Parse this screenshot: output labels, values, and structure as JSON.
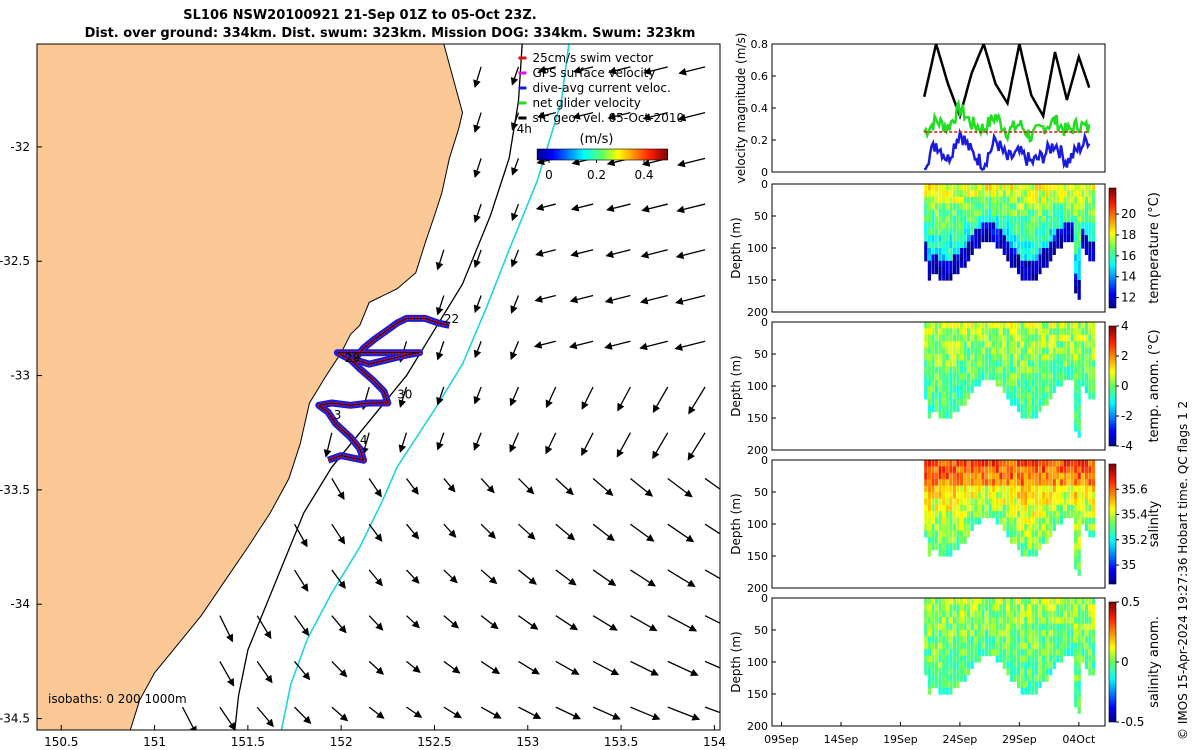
{
  "title_line1": "SL106 NSW20100921 21-Sep 01Z to 05-Oct 23Z.",
  "title_line2": "Dist. over ground: 334km. Dist. swum: 323km. Mission DOG: 334km. Swum: 323km",
  "credit": "© IMOS 15-Apr-2024 19:27:36 Hobart time. QC flags 1  2",
  "colors": {
    "land": "#fcc896",
    "track_red": "#e01010",
    "track_blue": "#1b1bdb",
    "isobath_cyan": "#22d3e0",
    "glider_green": "#22dd22"
  },
  "chart_data": [
    {
      "type": "map",
      "xlim": [
        150.37,
        154.03
      ],
      "ylim": [
        -34.55,
        -31.55
      ],
      "x_ticks": [
        "150.5",
        "151",
        "151.5",
        "152",
        "152.5",
        "153",
        "153.5",
        "154"
      ],
      "x_tick_values": [
        150.5,
        151,
        151.5,
        152,
        152.5,
        153,
        153.5,
        154
      ],
      "y_ticks": [
        "-32",
        "-32.5",
        "-33",
        "-33.5",
        "-34",
        "-34.5"
      ],
      "y_tick_values": [
        -32,
        -32.5,
        -33,
        -33.5,
        -34,
        -34.5
      ],
      "legend": {
        "position": "top-right",
        "entries": [
          {
            "label": "25cm/s swim vector",
            "color": "#e01010"
          },
          {
            "label": "GPS surface velocity",
            "color": "#e010e0"
          },
          {
            "label": "dive-avg current veloc.",
            "color": "#1b1bdb"
          },
          {
            "label": "net glider velocity",
            "color": "#22dd22"
          },
          {
            "label": "sfc geo. vel. 05-Oct-2010",
            "color": "#000000"
          }
        ]
      },
      "colorbar": {
        "unit": "(m/s)",
        "ticks": [
          "0",
          "0.2",
          "0.4"
        ],
        "tick_values": [
          0,
          0.2,
          0.4
        ],
        "range": [
          -0.05,
          0.5
        ]
      },
      "isobath_label": "isobaths: 0  200  1000m",
      "map_annotations": [
        {
          "text": "4h",
          "lon": 152.94,
          "lat": -31.94
        },
        {
          "text": "22",
          "lon": 152.55,
          "lat": -32.77
        },
        {
          "text": "29",
          "lon": 152.02,
          "lat": -32.94
        },
        {
          "text": "30",
          "lon": 152.3,
          "lat": -33.1
        },
        {
          "text": "3",
          "lon": 151.96,
          "lat": -33.19
        },
        {
          "text": "4",
          "lon": 152.1,
          "lat": -33.3
        }
      ],
      "coast": [
        [
          150.37,
          -31.55
        ],
        [
          152.55,
          -31.55
        ],
        [
          152.6,
          -31.7
        ],
        [
          152.65,
          -31.85
        ],
        [
          152.63,
          -31.92
        ],
        [
          152.58,
          -32.05
        ],
        [
          152.54,
          -32.2
        ],
        [
          152.5,
          -32.3
        ],
        [
          152.45,
          -32.42
        ],
        [
          152.4,
          -32.55
        ],
        [
          152.3,
          -32.62
        ],
        [
          152.15,
          -32.68
        ],
        [
          152.1,
          -32.78
        ],
        [
          152.05,
          -32.82
        ],
        [
          152.0,
          -32.9
        ],
        [
          151.92,
          -33.0
        ],
        [
          151.83,
          -33.12
        ],
        [
          151.78,
          -33.3
        ],
        [
          151.72,
          -33.45
        ],
        [
          151.62,
          -33.6
        ],
        [
          151.5,
          -33.75
        ],
        [
          151.35,
          -33.93
        ],
        [
          151.25,
          -34.05
        ],
        [
          151.12,
          -34.18
        ],
        [
          151.0,
          -34.3
        ],
        [
          150.92,
          -34.42
        ],
        [
          150.87,
          -34.55
        ],
        [
          150.37,
          -34.55
        ]
      ],
      "isobath_200": [
        [
          152.97,
          -31.55
        ],
        [
          152.95,
          -31.8
        ],
        [
          152.9,
          -32.05
        ],
        [
          152.8,
          -32.3
        ],
        [
          152.65,
          -32.6
        ],
        [
          152.5,
          -32.8
        ],
        [
          152.35,
          -33.0
        ],
        [
          152.15,
          -33.2
        ],
        [
          151.95,
          -33.4
        ],
        [
          151.8,
          -33.6
        ],
        [
          151.7,
          -33.8
        ],
        [
          151.6,
          -34.0
        ],
        [
          151.5,
          -34.2
        ],
        [
          151.45,
          -34.4
        ],
        [
          151.43,
          -34.55
        ]
      ],
      "isobath_1000": [
        [
          153.22,
          -31.55
        ],
        [
          153.18,
          -31.8
        ],
        [
          153.05,
          -32.15
        ],
        [
          152.9,
          -32.45
        ],
        [
          152.78,
          -32.7
        ],
        [
          152.65,
          -32.95
        ],
        [
          152.5,
          -33.15
        ],
        [
          152.3,
          -33.4
        ],
        [
          152.22,
          -33.55
        ],
        [
          152.1,
          -33.75
        ],
        [
          151.95,
          -33.95
        ],
        [
          151.82,
          -34.15
        ],
        [
          151.73,
          -34.35
        ],
        [
          151.68,
          -34.55
        ]
      ],
      "track_points": [
        [
          151.93,
          -33.37
        ],
        [
          152.0,
          -33.35
        ],
        [
          152.12,
          -33.37
        ],
        [
          152.1,
          -33.32
        ],
        [
          152.05,
          -33.27
        ],
        [
          151.97,
          -33.21
        ],
        [
          151.93,
          -33.16
        ],
        [
          151.88,
          -33.13
        ],
        [
          151.95,
          -33.12
        ],
        [
          152.05,
          -33.13
        ],
        [
          152.15,
          -33.12
        ],
        [
          152.25,
          -33.12
        ],
        [
          152.23,
          -33.07
        ],
        [
          152.17,
          -33.02
        ],
        [
          152.1,
          -32.97
        ],
        [
          152.05,
          -32.93
        ],
        [
          151.98,
          -32.9
        ],
        [
          152.07,
          -32.9
        ],
        [
          152.15,
          -32.9
        ],
        [
          152.22,
          -32.9
        ],
        [
          152.3,
          -32.9
        ],
        [
          152.37,
          -32.9
        ],
        [
          152.42,
          -32.9
        ],
        [
          152.35,
          -32.91
        ],
        [
          152.25,
          -32.93
        ],
        [
          152.15,
          -32.95
        ],
        [
          152.07,
          -32.93
        ],
        [
          152.12,
          -32.88
        ],
        [
          152.18,
          -32.84
        ],
        [
          152.25,
          -32.8
        ],
        [
          152.3,
          -32.77
        ],
        [
          152.35,
          -32.75
        ],
        [
          152.45,
          -32.75
        ],
        [
          152.52,
          -32.77
        ],
        [
          152.58,
          -32.78
        ]
      ]
    },
    {
      "type": "line",
      "ylabel": "velocity magnitude (m/s)",
      "ylim": [
        0,
        0.8
      ],
      "y_ticks": [
        "0",
        "0.2",
        "0.4",
        "0.6",
        "0.8"
      ],
      "y_tick_values": [
        0,
        0.2,
        0.4,
        0.6,
        0.8
      ],
      "x_days": [
        9,
        44
      ],
      "series": [
        {
          "color": "#000000",
          "x": [
            21,
            22,
            23,
            24,
            25,
            26,
            27,
            28,
            29,
            30,
            31,
            32,
            33,
            34,
            35
          ],
          "values": [
            0.47,
            0.8,
            0.55,
            0.35,
            0.62,
            0.8,
            0.55,
            0.43,
            0.8,
            0.48,
            0.35,
            0.75,
            0.45,
            0.72,
            0.5
          ]
        },
        {
          "color": "#22dd22",
          "x": [
            21,
            22,
            23,
            24,
            25,
            26,
            27,
            28,
            29,
            30,
            31,
            32,
            33,
            34,
            35
          ],
          "values": [
            0.25,
            0.32,
            0.28,
            0.4,
            0.3,
            0.27,
            0.35,
            0.25,
            0.3,
            0.22,
            0.28,
            0.32,
            0.25,
            0.3,
            0.26
          ]
        },
        {
          "color": "#1b1bdb",
          "x": [
            21,
            22,
            23,
            24,
            25,
            26,
            27,
            28,
            29,
            30,
            31,
            32,
            33,
            34,
            35
          ],
          "values": [
            0.05,
            0.18,
            0.08,
            0.25,
            0.12,
            0.05,
            0.2,
            0.08,
            0.12,
            0.06,
            0.1,
            0.18,
            0.06,
            0.15,
            0.22
          ]
        },
        {
          "color": "#e01010",
          "x": [
            21,
            22,
            23,
            24,
            25,
            26,
            27,
            28,
            29,
            30,
            31,
            32,
            33,
            34,
            35
          ],
          "values": [
            0.25,
            0.25,
            0.25,
            0.25,
            0.25,
            0.25,
            0.25,
            0.25,
            0.25,
            0.25,
            0.25,
            0.25,
            0.25,
            0.25,
            0.25
          ]
        }
      ]
    },
    {
      "type": "heatmap",
      "ylabel": "Depth (m)",
      "cbar_label": "temperature (°C)",
      "ylim": [
        200,
        0
      ],
      "y_ticks": [
        "0",
        "50",
        "100",
        "150",
        "200"
      ],
      "cbar_range": [
        11,
        22.5
      ],
      "cbar_ticks": [
        "12",
        "14",
        "16",
        "18",
        "20"
      ],
      "cbar_tick_values": [
        12,
        14,
        16,
        18,
        20
      ],
      "surface_value": 18,
      "deep_value": 14
    },
    {
      "type": "heatmap",
      "ylabel": "Depth (m)",
      "cbar_label": "temp. anom. (°C)",
      "ylim": [
        200,
        0
      ],
      "y_ticks": [
        "0",
        "50",
        "100",
        "150",
        "200"
      ],
      "cbar_range": [
        -4,
        4
      ],
      "cbar_ticks": [
        "-4",
        "-2",
        "0",
        "2",
        "4"
      ],
      "cbar_tick_values": [
        -4,
        -2,
        0,
        2,
        4
      ],
      "surface_value": 0.5,
      "deep_value": -0.5
    },
    {
      "type": "heatmap",
      "ylabel": "Depth (m)",
      "cbar_label": "salinity",
      "ylim": [
        200,
        0
      ],
      "y_ticks": [
        "0",
        "50",
        "100",
        "150",
        "200"
      ],
      "cbar_range": [
        34.85,
        35.8
      ],
      "cbar_ticks": [
        "35",
        "35.2",
        "35.4",
        "35.6"
      ],
      "cbar_tick_values": [
        35,
        35.2,
        35.4,
        35.6
      ],
      "surface_value": 35.55,
      "deep_value": 35.3
    },
    {
      "type": "heatmap",
      "ylabel": "Depth (m)",
      "cbar_label": "salinity anom.",
      "ylim": [
        200,
        0
      ],
      "y_ticks": [
        "0",
        "50",
        "100",
        "150",
        "200"
      ],
      "cbar_range": [
        -0.5,
        0.5
      ],
      "cbar_ticks": [
        "-0.5",
        "0",
        "0.5"
      ],
      "cbar_tick_values": [
        -0.5,
        0,
        0.5
      ],
      "surface_value": 0.05,
      "deep_value": -0.05,
      "x_ticks": [
        "09Sep",
        "14Sep",
        "19Sep",
        "24Sep",
        "29Sep",
        "04Oct"
      ],
      "x_tick_values": [
        9,
        14,
        19,
        24,
        29,
        34
      ],
      "data_start_day": 21,
      "data_end_day": 35
    }
  ]
}
